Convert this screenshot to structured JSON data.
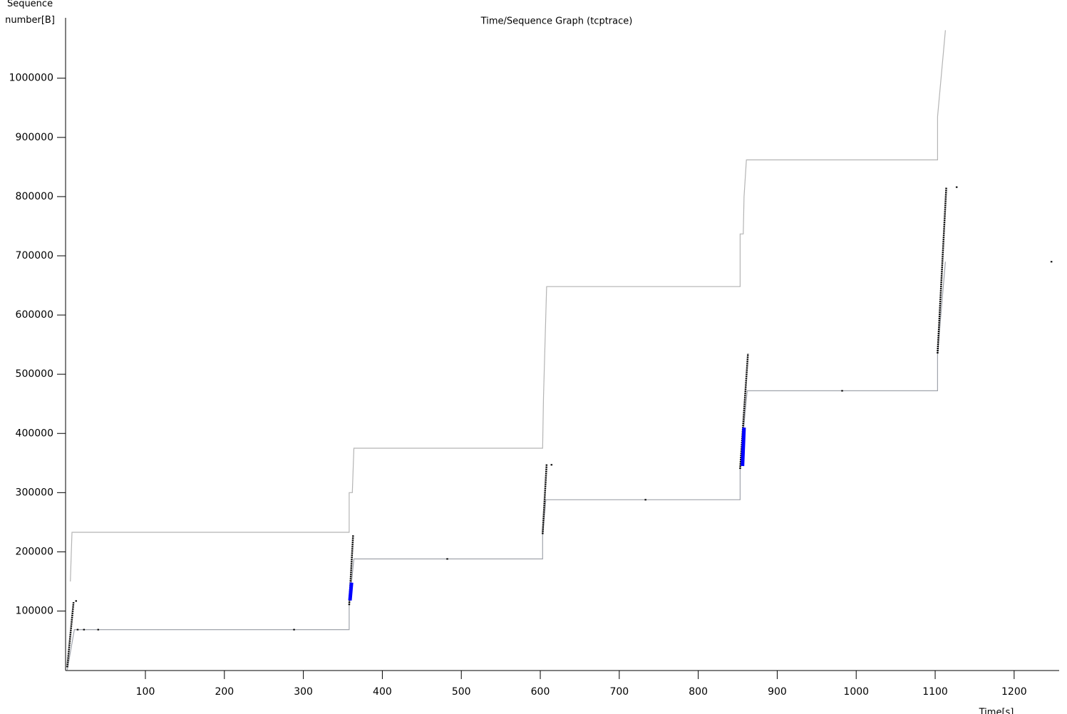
{
  "chart_data": {
    "type": "line",
    "title": "Time/Sequence Graph (tcptrace)",
    "xlabel": "Time[s]",
    "ylabel": "Sequence number[B]",
    "xlim": [
      0,
      1257
    ],
    "ylim": [
      0,
      1102000
    ],
    "xticks": [
      100,
      200,
      300,
      400,
      500,
      600,
      700,
      800,
      900,
      1000,
      1100,
      1200
    ],
    "yticks": [
      100000,
      200000,
      300000,
      400000,
      500000,
      600000,
      700000,
      800000,
      900000,
      1000000
    ],
    "series": [
      {
        "color": "#b4b4b4",
        "mode": "line",
        "x": [
          5,
          7,
          358,
          358,
          362,
          364,
          603,
          604,
          608,
          853,
          853,
          857,
          858,
          861,
          1103,
          1103,
          1113
        ],
        "values": [
          150000,
          233000,
          233000,
          300000,
          300000,
          375000,
          375000,
          460000,
          648000,
          648000,
          737000,
          737000,
          800000,
          862000,
          862000,
          935000,
          1081000
        ]
      },
      {
        "color": "#a0a4ac",
        "mode": "line",
        "x": [
          1,
          10,
          358,
          358,
          364,
          603,
          603,
          607,
          853,
          853,
          862,
          1103,
          1103,
          1113
        ],
        "values": [
          0,
          68600,
          68600,
          110000,
          188000,
          188000,
          230000,
          288000,
          288000,
          345000,
          472000,
          472000,
          535000,
          690000
        ]
      },
      {
        "color": "#000000",
        "mode": "line",
        "x": [
          1,
          9,
          null,
          358,
          363,
          null,
          603,
          608,
          null,
          853,
          863,
          null,
          1103,
          1114
        ],
        "values": [
          5000,
          115000,
          null,
          110000,
          228000,
          null,
          230000,
          348000,
          null,
          340000,
          535000,
          null,
          535000,
          815000
        ]
      },
      {
        "color": "#0000ff",
        "mode": "band",
        "x": [
          359,
          361,
          null,
          856,
          858
        ],
        "values": [
          118000,
          148000,
          null,
          345000,
          410000
        ]
      },
      {
        "color": "#000000",
        "mode": "markers",
        "x": [
          12,
          14,
          22,
          40,
          288,
          482,
          614,
          733,
          982,
          1127,
          1247
        ],
        "values": [
          117000,
          68600,
          68600,
          68600,
          68600,
          188000,
          347000,
          288000,
          472000,
          816000,
          690000
        ]
      }
    ]
  }
}
